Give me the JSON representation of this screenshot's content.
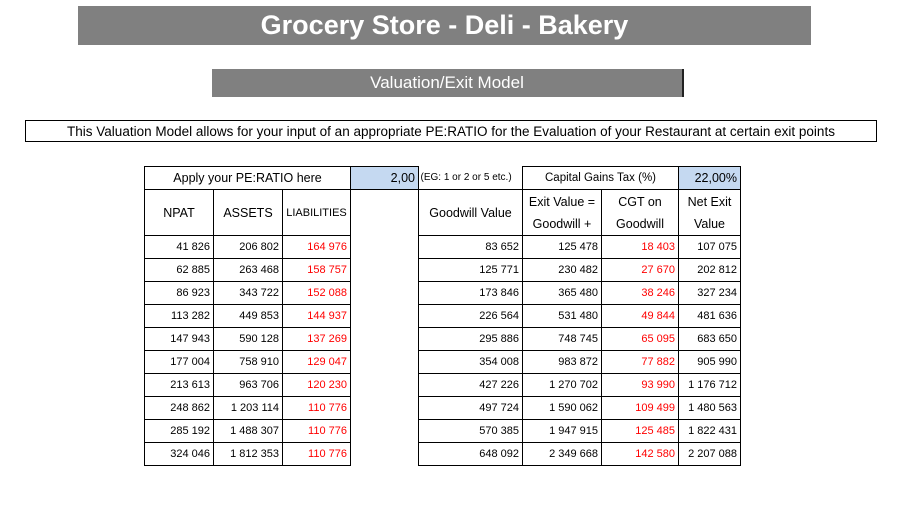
{
  "title": "Grocery Store - Deli - Bakery",
  "subtitle": "Valuation/Exit Model",
  "description": "This Valuation Model allows for your input of an appropriate PE:RATIO for the Evaluation of your Restaurant at certain exit points",
  "pe_label": "Apply your PE:RATIO here",
  "pe_value": "2,00",
  "pe_hint": "(EG: 1 or 2 or 5 etc.)",
  "cgt_label": "Capital Gains Tax (%)",
  "cgt_value": "22,00%",
  "left_headers": [
    "NPAT",
    "ASSETS",
    "LIABILITIES"
  ],
  "right_headers": {
    "goodwill": "Goodwill Value",
    "exit_1": "Exit Value =",
    "exit_2": "Goodwill +",
    "cgt_1": "CGT on",
    "cgt_2": "Goodwill",
    "net_1": "Net Exit",
    "net_2": "Value"
  },
  "rows": [
    [
      "41 826",
      "206 802",
      "164 976",
      "83 652",
      "125 478",
      "18 403",
      "107 075"
    ],
    [
      "62 885",
      "263 468",
      "158 757",
      "125 771",
      "230 482",
      "27 670",
      "202 812"
    ],
    [
      "86 923",
      "343 722",
      "152 088",
      "173 846",
      "365 480",
      "38 246",
      "327 234"
    ],
    [
      "113 282",
      "449 853",
      "144 937",
      "226 564",
      "531 480",
      "49 844",
      "481 636"
    ],
    [
      "147 943",
      "590 128",
      "137 269",
      "295 886",
      "748 745",
      "65 095",
      "683 650"
    ],
    [
      "177 004",
      "758 910",
      "129 047",
      "354 008",
      "983 872",
      "77 882",
      "905 990"
    ],
    [
      "213 613",
      "963 706",
      "120 230",
      "427 226",
      "1 270 702",
      "93 990",
      "1 176 712"
    ],
    [
      "248 862",
      "1 203 114",
      "110 776",
      "497 724",
      "1 590 062",
      "109 499",
      "1 480 563"
    ],
    [
      "285 192",
      "1 488 307",
      "110 776",
      "570 385",
      "1 947 915",
      "125 485",
      "1 822 431"
    ],
    [
      "324 046",
      "1 812 353",
      "110 776",
      "648 092",
      "2 349 668",
      "142 580",
      "2 207 088"
    ]
  ]
}
